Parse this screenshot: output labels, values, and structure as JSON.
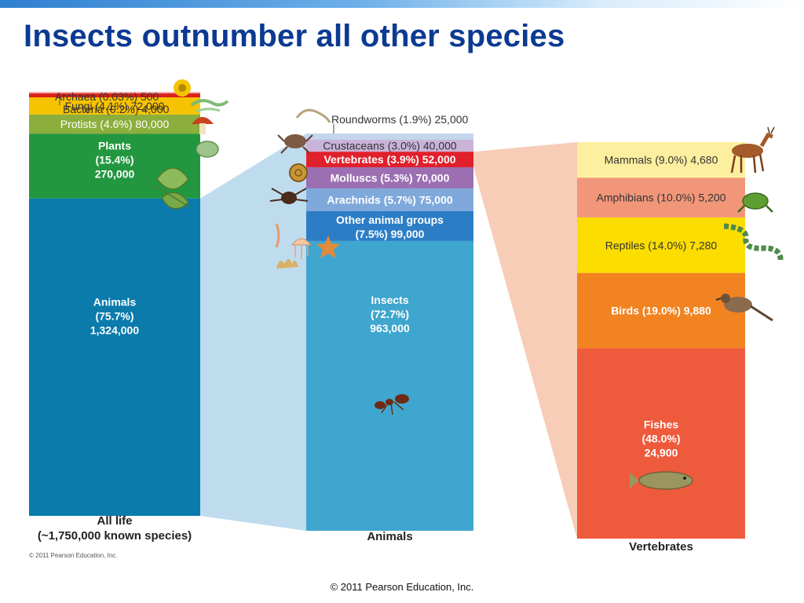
{
  "slide": {
    "title": "Insects outnumber all other species",
    "footer": "© 2011 Pearson Education, Inc."
  },
  "chart_data": {
    "type": "bar",
    "stacking": "stacked-100%",
    "connectors": "expansion bands link a segment to the column that breaks it down",
    "columns": [
      {
        "name": "all-life",
        "label": "All life",
        "sublabel": "(~1,750,000 known species)",
        "credit": "© 2011 Pearson Education, Inc.",
        "segments": [
          {
            "label": "Archaea (0.03%) 500",
            "name": "Archaea",
            "percent": 0.03,
            "count": 500,
            "color": "#f4a7a7",
            "text_position": "outside"
          },
          {
            "label": "Bacteria (0.2%) 4,000",
            "name": "Bacteria",
            "percent": 0.2,
            "count": 4000,
            "color": "#d9231c",
            "text_position": "outside"
          },
          {
            "label": "Fungi (4.1%) 72,000",
            "name": "Fungi",
            "percent": 4.1,
            "count": 72000,
            "color": "#f7c300",
            "text_position": "inside"
          },
          {
            "label": "Protists (4.6%) 80,000",
            "name": "Protists",
            "percent": 4.6,
            "count": 80000,
            "color": "#8cae3c",
            "text_position": "inside"
          },
          {
            "label": "Plants\n(15.4%)\n270,000",
            "name": "Plants",
            "percent": 15.4,
            "count": 270000,
            "color": "#23973f",
            "text_position": "inside"
          },
          {
            "label": "Animals\n(75.7%)\n1,324,000",
            "name": "Animals",
            "percent": 75.7,
            "count": 1324000,
            "color": "#0a7bab",
            "text_position": "inside"
          }
        ]
      },
      {
        "name": "animals",
        "label": "Animals",
        "segments": [
          {
            "label": "Roundworms (1.9%) 25,000",
            "name": "Roundworms",
            "percent": 1.9,
            "count": 25000,
            "color": "#c4d5ec",
            "text_position": "outside"
          },
          {
            "label": "Crustaceans (3.0%) 40,000",
            "name": "Crustaceans",
            "percent": 3.0,
            "count": 40000,
            "color": "#c9b3d9",
            "text_position": "inside"
          },
          {
            "label": "Vertebrates (3.9%) 52,000",
            "name": "Vertebrates",
            "percent": 3.9,
            "count": 52000,
            "color": "#e0202b",
            "text_position": "inside"
          },
          {
            "label": "Molluscs (5.3%) 70,000",
            "name": "Molluscs",
            "percent": 5.3,
            "count": 70000,
            "color": "#9b6fb2",
            "text_position": "inside"
          },
          {
            "label": "Arachnids (5.7%) 75,000",
            "name": "Arachnids",
            "percent": 5.7,
            "count": 75000,
            "color": "#7fa9db",
            "text_position": "inside"
          },
          {
            "label": "Other animal groups\n(7.5%) 99,000",
            "name": "Other animal groups",
            "percent": 7.5,
            "count": 99000,
            "color": "#2c7dc6",
            "text_position": "inside"
          },
          {
            "label": "Insects\n(72.7%)\n963,000",
            "name": "Insects",
            "percent": 72.7,
            "count": 963000,
            "color": "#3fa6cf",
            "text_position": "inside"
          }
        ]
      },
      {
        "name": "vertebrates",
        "label": "Vertebrates",
        "segments": [
          {
            "label": "Mammals (9.0%) 4,680",
            "name": "Mammals",
            "percent": 9.0,
            "count": 4680,
            "color": "#fcef9f",
            "text_position": "inside"
          },
          {
            "label": "Amphibians (10.0%) 5,200",
            "name": "Amphibians",
            "percent": 10.0,
            "count": 5200,
            "color": "#f2967a",
            "text_position": "inside"
          },
          {
            "label": "Reptiles (14.0%) 7,280",
            "name": "Reptiles",
            "percent": 14.0,
            "count": 7280,
            "color": "#fbde00",
            "text_position": "inside"
          },
          {
            "label": "Birds (19.0%) 9,880",
            "name": "Birds",
            "percent": 19.0,
            "count": 9880,
            "color": "#f18321",
            "text_position": "inside"
          },
          {
            "label": "Fishes\n(48.0%)\n24,900",
            "name": "Fishes",
            "percent": 48.0,
            "count": 24900,
            "color": "#ee5a3c",
            "text_position": "inside"
          }
        ]
      }
    ],
    "expansions": [
      {
        "from_column": "all-life",
        "segment": "Animals",
        "to_column": "animals",
        "color": "#bfdcee"
      },
      {
        "from_column": "animals",
        "segment": "Vertebrates",
        "to_column": "vertebrates",
        "color": "#f7cdb8"
      }
    ],
    "illustrations": [
      "sunflower-icon",
      "bacteria-icon",
      "mushroom-icon",
      "protist-icon",
      "leaf-icon",
      "worm-icon",
      "crab-icon",
      "snail-icon",
      "spider-icon",
      "jellyfish-icon",
      "starfish-icon",
      "coral-icon",
      "ant-icon",
      "deer-icon",
      "frog-icon",
      "snake-icon",
      "bird-icon",
      "fish-icon"
    ]
  }
}
